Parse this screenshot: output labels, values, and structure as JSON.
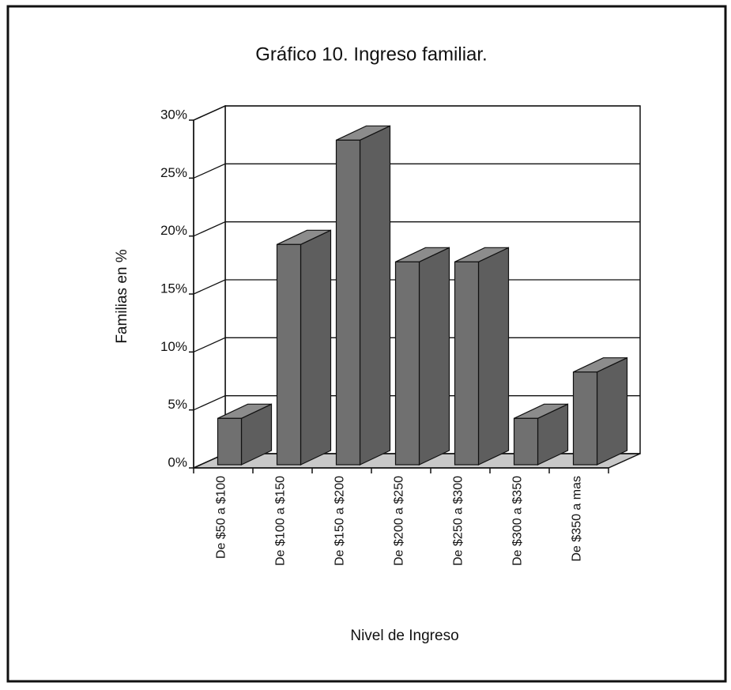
{
  "chart_data": {
    "type": "bar3d",
    "title": "Gráfico 10. Ingreso familiar.",
    "x_label": "Nivel de Ingreso",
    "y_label": "Familias en %",
    "categories": [
      "De $50 a $100",
      "De $100 a $150",
      "De $150 a $200",
      "De $200 a $250",
      "De $250 a $300",
      "De $300 a $350",
      "De $350 a mas"
    ],
    "values": [
      4,
      19,
      28,
      17.5,
      17.5,
      4,
      8
    ],
    "color": "#707070",
    "ylim": [
      0,
      30
    ],
    "yticks": [
      {
        "value": 0,
        "label": "0%"
      },
      {
        "value": 5,
        "label": "5%"
      },
      {
        "value": 10,
        "label": "10%"
      },
      {
        "value": 15,
        "label": "15%"
      },
      {
        "value": 20,
        "label": "20%"
      },
      {
        "value": 25,
        "label": "25%"
      },
      {
        "value": 30,
        "label": "30%"
      }
    ],
    "grid": true
  }
}
